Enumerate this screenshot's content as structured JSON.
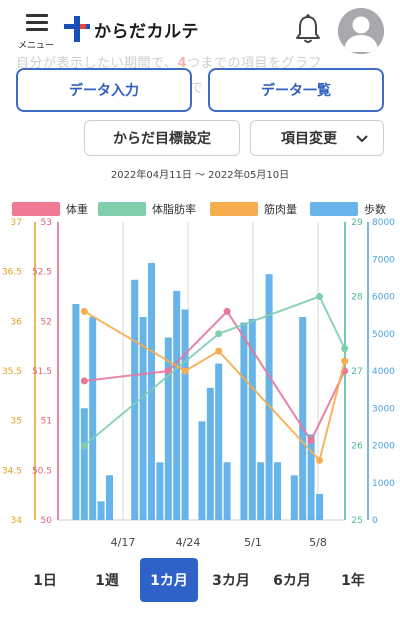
{
  "header": {
    "menu_label": "メニュー",
    "app_name": "からだカルテ",
    "brand_color": "#1a4fb5",
    "accent_color": "#e8453c"
  },
  "background_text": {
    "line1_pre": "自分が表示したい期間で、",
    "line1_hl": "4",
    "line1_post": "つまでの項目をグラフ",
    "line2": "で"
  },
  "actions": {
    "data_entry": "データ入力",
    "data_list": "データ一覧",
    "goal_settings": "からだ目標設定",
    "item_change": "項目変更"
  },
  "date_range": "2022年04月11日 ～ 2022年05月10日",
  "legend": [
    {
      "label": "体重",
      "color": "#f07a93"
    },
    {
      "label": "体脂肪率",
      "color": "#7fcfad"
    },
    {
      "label": "筋肉量",
      "color": "#f5ad4d"
    },
    {
      "label": "歩数",
      "color": "#66b4ea"
    }
  ],
  "chart_data": {
    "type": "bar+line",
    "x_ticks": [
      "4/17",
      "4/24",
      "5/1",
      "5/8"
    ],
    "y_axes": {
      "muscle": {
        "color": "#e0a21e",
        "ticks": [
          "34",
          "34.5",
          "35",
          "35.5",
          "36",
          "36.5",
          "37"
        ],
        "range": [
          34,
          37
        ]
      },
      "weight": {
        "color": "#e0607c",
        "ticks": [
          "50",
          "50.5",
          "51",
          "51.5",
          "52",
          "52.5",
          "53"
        ],
        "range": [
          50,
          53
        ]
      },
      "body_fat": {
        "color": "#4cb890",
        "ticks": [
          "25",
          "26",
          "27",
          "28",
          "29"
        ],
        "range": [
          25,
          29
        ]
      },
      "steps": {
        "color": "#4aa3dd",
        "ticks": [
          "0",
          "1000",
          "2000",
          "3000",
          "4000",
          "5000",
          "6000",
          "7000",
          "8000"
        ],
        "range": [
          0,
          8000
        ]
      }
    },
    "bars": {
      "name": "歩数",
      "day_index": [
        1,
        2,
        3,
        4,
        5,
        8,
        9,
        10,
        11,
        12,
        13,
        14,
        16,
        17,
        18,
        19,
        21,
        22,
        23,
        24,
        25,
        27,
        28,
        29,
        30
      ],
      "values": [
        5800,
        3000,
        5450,
        500,
        1200,
        6450,
        5450,
        6900,
        1550,
        4900,
        6150,
        5650,
        2650,
        3550,
        4200,
        1550,
        5300,
        5400,
        1550,
        6600,
        1550,
        1200,
        5450,
        2300,
        700
      ]
    },
    "lines": [
      {
        "name": "体重",
        "axis": "weight",
        "color": "#e8779a",
        "points": [
          [
            2,
            51.4
          ],
          [
            12,
            51.5
          ],
          [
            19,
            52.1
          ],
          [
            29,
            50.8
          ],
          [
            33,
            51.5
          ]
        ]
      },
      {
        "name": "体脂肪率",
        "axis": "body_fat",
        "color": "#7fcfad",
        "points": [
          [
            2,
            26.0
          ],
          [
            18,
            27.5
          ],
          [
            30,
            28.0
          ],
          [
            33,
            27.3
          ]
        ]
      },
      {
        "name": "筋肉量",
        "axis": "muscle",
        "color": "#f5ad4d",
        "points": [
          [
            2,
            36.1
          ],
          [
            14,
            35.5
          ],
          [
            18,
            35.7
          ],
          [
            30,
            34.6
          ],
          [
            33,
            35.6
          ]
        ]
      }
    ]
  },
  "periods": [
    {
      "label": "1日",
      "active": false
    },
    {
      "label": "1週",
      "active": false
    },
    {
      "label": "1カ月",
      "active": true
    },
    {
      "label": "3カ月",
      "active": false
    },
    {
      "label": "6カ月",
      "active": false
    },
    {
      "label": "1年",
      "active": false
    }
  ]
}
